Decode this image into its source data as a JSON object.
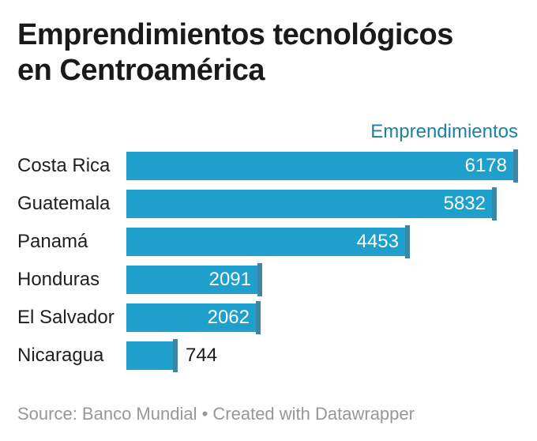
{
  "chart": {
    "legend_header": "Emprendimientos",
    "footer_text": "Source: Banco Mundial • Created with Datawrapper",
    "colors": {
      "background": "#ffffff",
      "bar": "#1e9fcc",
      "bar_end_marker": "#3f86a5",
      "legend_header": "#1d81a6",
      "title": "#1a1a1a",
      "category_label": "#1f1f1f",
      "value_inside": "#ffffff",
      "value_outside": "#1a1a1a",
      "footer": "#979797"
    }
  },
  "chart_data": {
    "type": "bar",
    "orientation": "horizontal",
    "title": "Emprendimientos tecnológicos en Centroamérica",
    "series_header": "Emprendimientos",
    "categories": [
      "Costa Rica",
      "Guatemala",
      "Panamá",
      "Honduras",
      "El Salvador",
      "Nicaragua"
    ],
    "values": [
      6178,
      5832,
      4453,
      2091,
      2062,
      744
    ],
    "value_labels_shown": [
      6178,
      5832,
      4453,
      2091,
      2062,
      744
    ],
    "xlim": [
      0,
      6178
    ],
    "grid": false,
    "legend_position": "top-right",
    "source_text": "Source: Banco Mundial",
    "attribution_text": "Created with Datawrapper"
  }
}
